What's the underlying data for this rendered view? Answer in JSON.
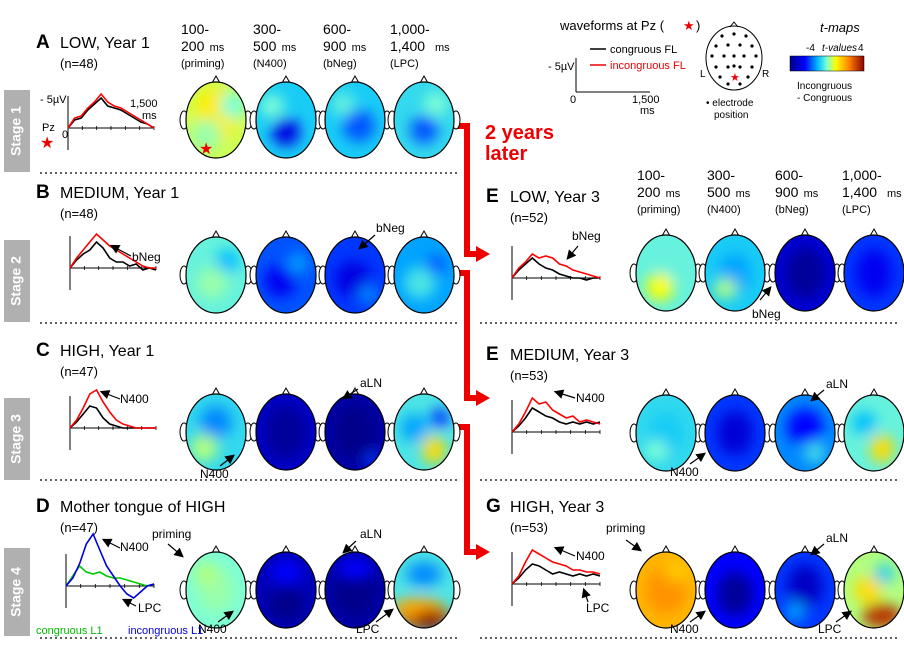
{
  "header": {
    "time_windows": [
      {
        "line1": "100-",
        "line2": "200",
        "unit": "ms",
        "comp": "(priming)"
      },
      {
        "line1": "300-",
        "line2": "500",
        "unit": "ms",
        "comp": "(N400)"
      },
      {
        "line1": "600-",
        "line2": "900",
        "unit": "ms",
        "comp": "(bNeg)"
      },
      {
        "line1": "1,000-",
        "line2": "1,400",
        "unit": "ms",
        "comp": "(LPC)"
      }
    ]
  },
  "legend": {
    "waveforms_title": "waveforms at Pz (",
    "waveforms_title_end": ")",
    "scale_label": "- 5µV",
    "congruous": "congruous FL",
    "incongruous": "incongruous FL",
    "x_start": "0",
    "x_end": "1,500",
    "x_unit": "ms",
    "electrode_left": "L",
    "electrode_right": "R",
    "electrode_caption1": "• electrode",
    "electrode_caption2": "position",
    "tmaps_title": "t-maps",
    "tval_min": "-4",
    "tval_label": "t-values",
    "tval_max": "4",
    "contrast1": "Incongruous",
    "contrast2": "- Congruous"
  },
  "stages": [
    "Stage 1",
    "Stage 2",
    "Stage 3",
    "Stage 4"
  ],
  "transition": {
    "line1": "2 years",
    "line2": "later"
  },
  "panels": {
    "A": {
      "letter": "A",
      "title": "LOW, Year 1",
      "n": "(n=48)"
    },
    "B": {
      "letter": "B",
      "title": "MEDIUM, Year 1",
      "n": "(n=48)"
    },
    "C": {
      "letter": "C",
      "title": "HIGH, Year 1",
      "n": "(n=47)"
    },
    "D": {
      "letter": "D",
      "title": "Mother tongue of HIGH",
      "n": "(n=47)"
    },
    "E1": {
      "letter": "E",
      "title": "LOW, Year 3",
      "n": "(n=52)"
    },
    "E2": {
      "letter": "E",
      "title": "MEDIUM, Year 3",
      "n": "(n=53)"
    },
    "G": {
      "letter": "G",
      "title": "HIGH, Year 3",
      "n": "(n=53)"
    }
  },
  "panelA_axis": {
    "scale": "- 5µV",
    "x_end": "1,500",
    "x_unit": "ms",
    "electrode": "Pz",
    "zero": "0"
  },
  "annotations": {
    "bNeg": "bNeg",
    "N400": "N400",
    "aLN": "aLN",
    "priming": "priming",
    "LPC": "LPC"
  },
  "l1_legend": {
    "congruous": "congruous L1",
    "incongruous": "incongruous L1"
  },
  "colors": {
    "congruous": "#000000",
    "incongruous": "#ff0000",
    "congruous_l1": "#00cc00",
    "incongruous_l1": "#0000dd",
    "arrow": "#ff0000",
    "stage_bar": "#b0b0b0"
  }
}
